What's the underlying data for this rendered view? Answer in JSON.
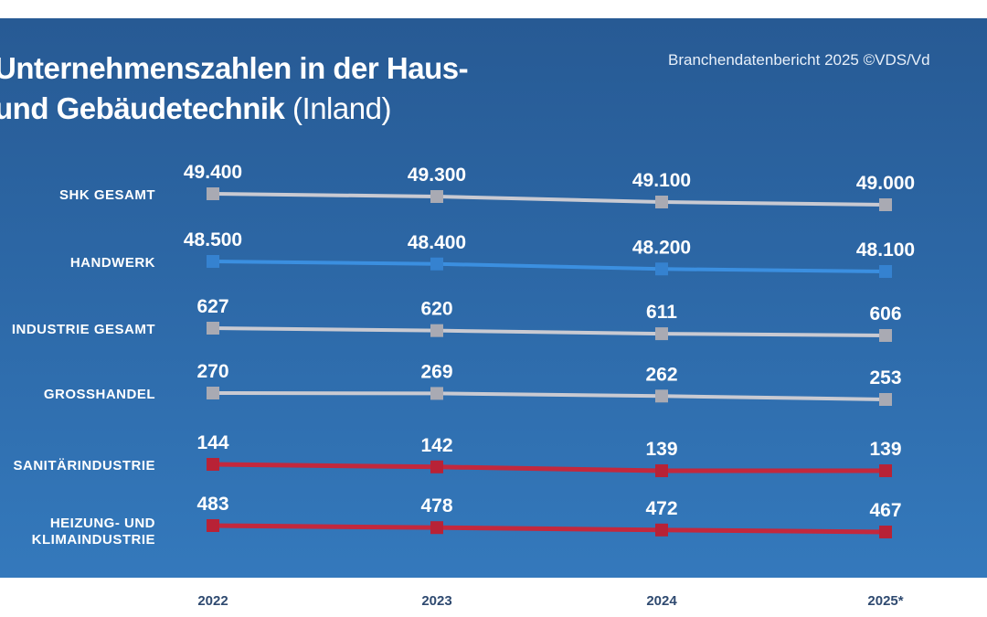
{
  "title_line1": "Unternehmenszahlen in der Haus-",
  "title_line2_bold": "und Gebäudetechnik",
  "title_line2_light": "(Inland)",
  "source": "Branchendatenbericht 2025 ©VDS/Vd",
  "chart_data": {
    "type": "line",
    "title": "Unternehmenszahlen in der Haus- und Gebäudetechnik (Inland)",
    "categories": [
      "2022",
      "2023",
      "2024",
      "2025*"
    ],
    "grid": false,
    "series": [
      {
        "name": "SHK GESAMT",
        "labels": [
          "SHK GESAMT"
        ],
        "values": [
          49400,
          49300,
          49100,
          49000
        ],
        "value_labels": [
          "49.400",
          "49.300",
          "49.100",
          "49.000"
        ],
        "color": "#c9cad2",
        "marker": "#a9aab3"
      },
      {
        "name": "HANDWERK",
        "labels": [
          "HANDWERK"
        ],
        "values": [
          48500,
          48400,
          48200,
          48100
        ],
        "value_labels": [
          "48.500",
          "48.400",
          "48.200",
          "48.100"
        ],
        "color": "#3b8fe0",
        "marker": "#3582d0"
      },
      {
        "name": "INDUSTRIE GESAMT",
        "labels": [
          "INDUSTRIE GESAMT"
        ],
        "values": [
          627,
          620,
          611,
          606
        ],
        "value_labels": [
          "627",
          "620",
          "611",
          "606"
        ],
        "color": "#c9cad2",
        "marker": "#a9aab3"
      },
      {
        "name": "GROSSHANDEL",
        "labels": [
          "GROSSHANDEL"
        ],
        "values": [
          270,
          269,
          262,
          253
        ],
        "value_labels": [
          "270",
          "269",
          "262",
          "253"
        ],
        "color": "#c9cad2",
        "marker": "#a9aab3"
      },
      {
        "name": "SANITÄRINDUSTRIE",
        "labels": [
          "SANITÄRINDUSTRIE"
        ],
        "values": [
          144,
          142,
          139,
          139
        ],
        "value_labels": [
          "144",
          "142",
          "139",
          "139"
        ],
        "color": "#c3283d",
        "marker": "#b82236"
      },
      {
        "name": "HEIZUNG- UND KLIMAINDUSTRIE",
        "labels": [
          "HEIZUNG- UND",
          "KLIMAINDUSTRIE"
        ],
        "values": [
          483,
          478,
          472,
          467
        ],
        "value_labels": [
          "483",
          "478",
          "472",
          "467"
        ],
        "color": "#c3283d",
        "marker": "#b82236"
      }
    ]
  }
}
